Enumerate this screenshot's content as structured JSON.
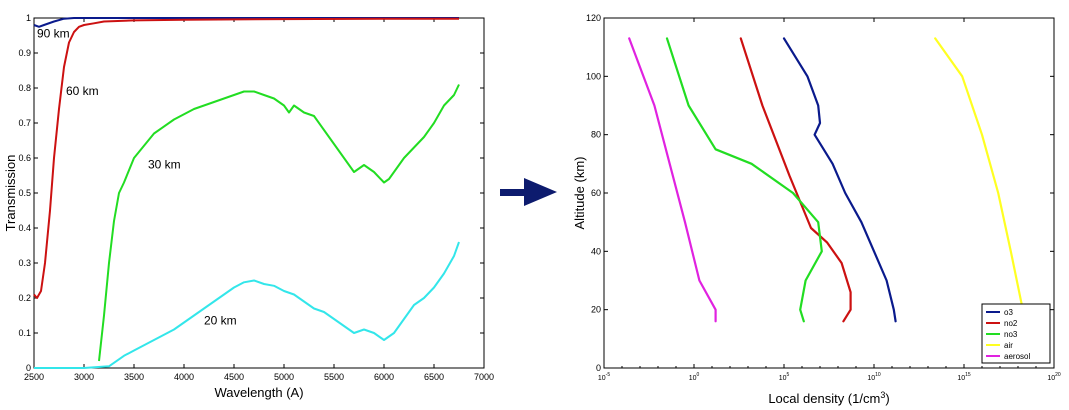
{
  "chart_data": [
    {
      "type": "line",
      "xlabel": "Wavelength (A)",
      "ylabel": "Transmission",
      "xlim": [
        2500,
        7000
      ],
      "ylim": [
        0,
        1
      ],
      "xticks": [
        "2500",
        "3000",
        "3500",
        "4000",
        "4500",
        "5000",
        "5500",
        "6000",
        "6500",
        "7000"
      ],
      "yticks": [
        "0",
        "0.1",
        "0.2",
        "0.3",
        "0.4",
        "0.5",
        "0.6",
        "0.7",
        "0.8",
        "0.9",
        "1"
      ],
      "grid": false,
      "series": [
        {
          "name": "90 km",
          "color": "#0a1a8c",
          "x": [
            2500,
            2550,
            2600,
            2700,
            2800,
            2900,
            3000,
            3500,
            4000,
            5000,
            6000,
            6750
          ],
          "y": [
            0.98,
            0.975,
            0.98,
            0.99,
            0.998,
            1.0,
            1.0,
            1.0,
            1.0,
            1.0,
            1.0,
            1.0
          ]
        },
        {
          "name": "60 km",
          "color": "#cc1111",
          "x": [
            2500,
            2530,
            2570,
            2610,
            2660,
            2700,
            2750,
            2800,
            2850,
            2900,
            2950,
            3000,
            3100,
            3200,
            3500,
            4000,
            5000,
            6000,
            6750
          ],
          "y": [
            0.21,
            0.2,
            0.22,
            0.3,
            0.45,
            0.6,
            0.74,
            0.86,
            0.93,
            0.96,
            0.975,
            0.98,
            0.985,
            0.99,
            0.993,
            0.995,
            0.997,
            0.998,
            0.998
          ]
        },
        {
          "name": "30 km",
          "color": "#22dd22",
          "x": [
            3150,
            3200,
            3250,
            3300,
            3350,
            3400,
            3500,
            3700,
            3900,
            4100,
            4300,
            4500,
            4600,
            4700,
            4800,
            4900,
            5000,
            5050,
            5100,
            5200,
            5300,
            5400,
            5500,
            5600,
            5700,
            5800,
            5900,
            6000,
            6050,
            6100,
            6200,
            6300,
            6400,
            6500,
            6600,
            6700,
            6750
          ],
          "y": [
            0.02,
            0.15,
            0.3,
            0.42,
            0.5,
            0.53,
            0.6,
            0.67,
            0.71,
            0.74,
            0.76,
            0.78,
            0.79,
            0.79,
            0.78,
            0.77,
            0.75,
            0.73,
            0.75,
            0.73,
            0.72,
            0.68,
            0.64,
            0.6,
            0.56,
            0.58,
            0.56,
            0.53,
            0.54,
            0.56,
            0.6,
            0.63,
            0.66,
            0.7,
            0.75,
            0.78,
            0.81
          ]
        },
        {
          "name": "20 km",
          "color": "#33e6ea",
          "x": [
            2500,
            3000,
            3250,
            3300,
            3350,
            3400,
            3500,
            3700,
            3900,
            4100,
            4300,
            4500,
            4600,
            4700,
            4800,
            4900,
            5000,
            5100,
            5200,
            5300,
            5400,
            5500,
            5600,
            5700,
            5800,
            5900,
            6000,
            6100,
            6200,
            6300,
            6400,
            6500,
            6600,
            6700,
            6750
          ],
          "y": [
            0.0,
            0.0,
            0.005,
            0.015,
            0.025,
            0.035,
            0.05,
            0.08,
            0.11,
            0.15,
            0.19,
            0.23,
            0.245,
            0.25,
            0.24,
            0.235,
            0.22,
            0.21,
            0.19,
            0.17,
            0.16,
            0.14,
            0.12,
            0.1,
            0.11,
            0.1,
            0.08,
            0.1,
            0.14,
            0.18,
            0.2,
            0.23,
            0.27,
            0.32,
            0.36
          ]
        }
      ],
      "annotations": [
        {
          "text": "90 km",
          "x": 2530,
          "y": 0.945
        },
        {
          "text": "60 km",
          "x": 2820,
          "y": 0.78
        },
        {
          "text": "30 km",
          "x": 3640,
          "y": 0.57
        },
        {
          "text": "20 km",
          "x": 4200,
          "y": 0.125
        }
      ]
    },
    {
      "type": "line",
      "xlabel": "Local density (1/cm³)",
      "xlabel_text": "Local density (1/cm",
      "xlabel_sup": "3",
      "xlabel_end": ")",
      "ylabel": "Altitude (km)",
      "xscale": "log",
      "xlim_exp": [
        -5,
        20
      ],
      "ylim": [
        0,
        120
      ],
      "xticks": [
        {
          "mant": "10",
          "exp": "-5"
        },
        {
          "mant": "10",
          "exp": "0"
        },
        {
          "mant": "10",
          "exp": "5"
        },
        {
          "mant": "10",
          "exp": "10"
        },
        {
          "mant": "10",
          "exp": "15"
        },
        {
          "mant": "10",
          "exp": "20"
        }
      ],
      "yticks": [
        "0",
        "20",
        "40",
        "60",
        "80",
        "100",
        "120"
      ],
      "grid": false,
      "legend": "bottom-right",
      "series": [
        {
          "name": "o3",
          "color": "#0a1a8c",
          "log10_density": [
            11.2,
            11.1,
            10.7,
            10.0,
            9.3,
            8.4,
            7.7,
            7.1,
            6.7,
            7.0,
            6.9,
            6.3,
            5.0
          ],
          "altitude": [
            16,
            20,
            30,
            40,
            50,
            60,
            70,
            76,
            80,
            84,
            90,
            100,
            113
          ]
        },
        {
          "name": "no2",
          "color": "#cc1111",
          "log10_density": [
            8.3,
            8.7,
            8.7,
            8.2,
            7.4,
            6.5,
            5.3,
            3.8,
            2.6
          ],
          "altitude": [
            16,
            20,
            26,
            36,
            43,
            48,
            66,
            90,
            113
          ]
        },
        {
          "name": "no3",
          "color": "#22dd22",
          "log10_density": [
            6.1,
            5.9,
            6.2,
            7.1,
            6.9,
            5.5,
            3.2,
            1.2,
            -0.3,
            -1.5
          ],
          "altitude": [
            16,
            20,
            30,
            40,
            50,
            60,
            70,
            75,
            90,
            113
          ]
        },
        {
          "name": "air",
          "color": "#ffff22",
          "log10_density": [
            18.2,
            17.6,
            16.9,
            16.0,
            14.9,
            13.4
          ],
          "altitude": [
            22,
            40,
            60,
            80,
            100,
            113
          ]
        },
        {
          "name": "aerosol",
          "color": "#e022e0",
          "log10_density": [
            1.2,
            1.2,
            0.3,
            -0.5,
            -2.2,
            -3.6
          ],
          "altitude": [
            16,
            20,
            30,
            50,
            90,
            113
          ]
        }
      ]
    }
  ],
  "arrow": {
    "color": "#0d1b6e"
  }
}
